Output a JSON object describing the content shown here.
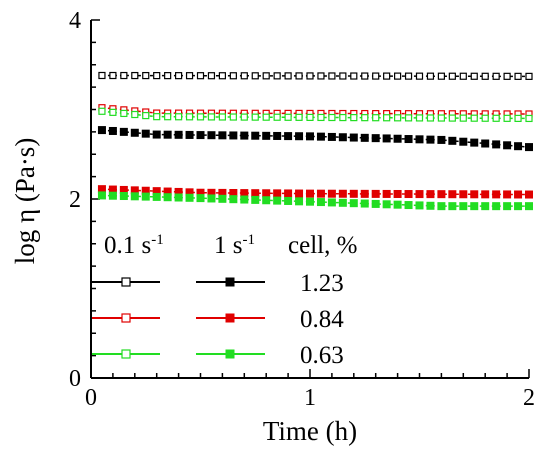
{
  "chart_data": {
    "type": "line",
    "title": "",
    "xlabel": "Time (h)",
    "ylabel": "log η (Pa·s)",
    "xlim": [
      0,
      2
    ],
    "ylim": [
      0,
      4
    ],
    "x_ticks": [
      "0",
      "1",
      "2"
    ],
    "y_ticks": [
      "0",
      "2",
      "4"
    ],
    "grid": false,
    "legend": {
      "placement": "lower-left",
      "header": {
        "col1": "0.1 s",
        "col1_sup": "-1",
        "col2": "1 s",
        "col2_sup": "-1",
        "col3": "cell, %"
      },
      "rows": [
        {
          "label": "1.23",
          "color": "#000000"
        },
        {
          "label": "0.84",
          "color": "#e00000"
        },
        {
          "label": "0.63",
          "color": "#22dd22"
        }
      ]
    },
    "series": [
      {
        "rate": "0.1 s-1",
        "cell": "1.23",
        "color": "#000000",
        "marker": "open-square",
        "x": [
          0.05,
          2.0
        ],
        "y": [
          3.38,
          3.37
        ]
      },
      {
        "rate": "0.1 s-1",
        "cell": "0.84",
        "color": "#e00000",
        "marker": "open-square",
        "x": [
          0.05,
          0.3,
          2.0
        ],
        "y": [
          3.02,
          2.96,
          2.95
        ]
      },
      {
        "rate": "0.1 s-1",
        "cell": "0.63",
        "color": "#22dd22",
        "marker": "open-square",
        "x": [
          0.05,
          0.3,
          2.0
        ],
        "y": [
          2.98,
          2.92,
          2.9
        ]
      },
      {
        "rate": "1 s-1",
        "cell": "1.23",
        "color": "#000000",
        "marker": "filled-square",
        "x": [
          0.05,
          0.3,
          1.0,
          1.6,
          2.0
        ],
        "y": [
          2.77,
          2.72,
          2.7,
          2.66,
          2.58
        ]
      },
      {
        "rate": "1 s-1",
        "cell": "0.84",
        "color": "#e00000",
        "marker": "filled-square",
        "x": [
          0.05,
          0.5,
          1.0,
          2.0
        ],
        "y": [
          2.11,
          2.07,
          2.06,
          2.05
        ]
      },
      {
        "rate": "1 s-1",
        "cell": "0.63",
        "color": "#22dd22",
        "marker": "filled-square",
        "x": [
          0.05,
          0.5,
          1.0,
          1.6,
          2.0
        ],
        "y": [
          2.04,
          2.01,
          1.97,
          1.92,
          1.92
        ]
      }
    ]
  }
}
